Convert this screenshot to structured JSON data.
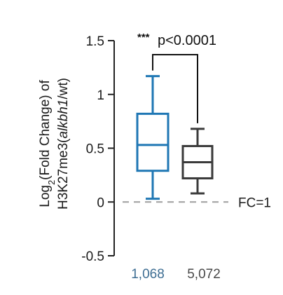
{
  "chart_data": {
    "type": "boxplot",
    "ylabel": {
      "line1_prefix": "Log",
      "line1_sub": "2",
      "line1_rest": "(Fold Change) of",
      "line2_prefix": "H3K27me3(",
      "line2_italic": "alkbh1",
      "line2_suffix": "/wt)"
    },
    "ylim": [
      -0.5,
      1.5
    ],
    "yticks": [
      {
        "value": 1.5,
        "label": "1.5"
      },
      {
        "value": 1,
        "label": "1"
      },
      {
        "value": 0.5,
        "label": "0.5"
      },
      {
        "value": 0,
        "label": "0"
      },
      {
        "value": -0.5,
        "label": "-0.5"
      }
    ],
    "categories": [
      "1,068",
      "5,072"
    ],
    "boxes": [
      {
        "category": "1,068",
        "color": "#1f77b4",
        "whisker_low": 0.03,
        "q1": 0.29,
        "median": 0.53,
        "q3": 0.82,
        "whisker_high": 1.17
      },
      {
        "category": "5,072",
        "color": "#3a3a3a",
        "whisker_low": 0.08,
        "q1": 0.22,
        "median": 0.37,
        "q3": 0.52,
        "whisker_high": 0.68
      }
    ],
    "reference_line": {
      "value": 0,
      "label": "FC=1",
      "color": "#9e9e9e"
    },
    "significance": {
      "stars": "***",
      "text": "p<0.0001",
      "bracket_y": 1.37
    },
    "category_label_colors": [
      "#3e6e93",
      "#4a4a4a"
    ]
  }
}
